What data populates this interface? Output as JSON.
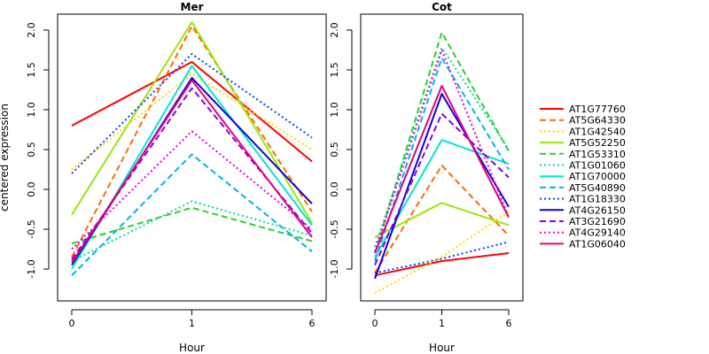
{
  "chart_data": {
    "type": "line",
    "ylabel": "centered expression",
    "legend_position": "right",
    "grid": false,
    "series_styles": [
      {
        "name": "AT1G77760",
        "color": "#ff0000",
        "dash": "solid"
      },
      {
        "name": "AT5G64330",
        "color": "#ff6a00",
        "dash": "dashed"
      },
      {
        "name": "AT1G42540",
        "color": "#ffd700",
        "dash": "dotted"
      },
      {
        "name": "AT5G52250",
        "color": "#9be60f",
        "dash": "solid"
      },
      {
        "name": "AT1G53310",
        "color": "#2ccf2c",
        "dash": "dashed"
      },
      {
        "name": "AT1G01060",
        "color": "#00e090",
        "dash": "dotted"
      },
      {
        "name": "AT1G70000",
        "color": "#00e6d0",
        "dash": "solid"
      },
      {
        "name": "AT5G40890",
        "color": "#00b4e6",
        "dash": "dashed"
      },
      {
        "name": "AT1G18330",
        "color": "#0044ff",
        "dash": "dotted"
      },
      {
        "name": "AT4G26150",
        "color": "#1400d2",
        "dash": "solid"
      },
      {
        "name": "AT3G21690",
        "color": "#8a00e6",
        "dash": "dashed"
      },
      {
        "name": "AT4G29140",
        "color": "#e600e6",
        "dash": "dotted"
      },
      {
        "name": "AT1G06040",
        "color": "#e6007a",
        "dash": "solid"
      }
    ],
    "panels": [
      {
        "title": "Mer",
        "xlabel": "Hour",
        "categories": [
          "0",
          "1",
          "6"
        ],
        "ylim": [
          -1.4,
          2.2
        ],
        "yticks": [
          "-1.0",
          "-0.5",
          "0.0",
          "0.5",
          "1.0",
          "1.5",
          "2.0"
        ],
        "ytick_values": [
          -1.0,
          -0.5,
          0.0,
          0.5,
          1.0,
          1.5,
          2.0
        ],
        "series": [
          {
            "name": "AT1G77760",
            "values": [
              0.8,
              1.6,
              0.35
            ]
          },
          {
            "name": "AT5G64330",
            "values": [
              -0.85,
              2.05,
              -0.28
            ]
          },
          {
            "name": "AT1G42540",
            "values": [
              0.25,
              1.45,
              0.5
            ]
          },
          {
            "name": "AT5G52250",
            "values": [
              -0.32,
              2.1,
              -0.42
            ]
          },
          {
            "name": "AT1G53310",
            "values": [
              -0.68,
              -0.23,
              -0.65
            ]
          },
          {
            "name": "AT1G01060",
            "values": [
              -0.9,
              -0.15,
              -0.58
            ]
          },
          {
            "name": "AT1G70000",
            "values": [
              -1.0,
              1.55,
              -0.45
            ]
          },
          {
            "name": "AT5G40890",
            "values": [
              -1.08,
              0.44,
              -0.78
            ]
          },
          {
            "name": "AT1G18330",
            "values": [
              0.2,
              1.7,
              0.65
            ]
          },
          {
            "name": "AT4G26150",
            "values": [
              -0.95,
              1.4,
              -0.18
            ]
          },
          {
            "name": "AT3G21690",
            "values": [
              -0.88,
              1.27,
              -0.55
            ]
          },
          {
            "name": "AT4G29140",
            "values": [
              -0.75,
              0.73,
              -0.5
            ]
          },
          {
            "name": "AT1G06040",
            "values": [
              -0.92,
              1.37,
              -0.6
            ]
          }
        ]
      },
      {
        "title": "Cot",
        "xlabel": "Hour",
        "categories": [
          "0",
          "1",
          "6"
        ],
        "ylim": [
          -1.4,
          2.2
        ],
        "yticks": [
          "-1.0",
          "-0.5",
          "0.0",
          "0.5",
          "1.0",
          "1.5",
          "2.0"
        ],
        "ytick_values": [
          -1.0,
          -0.5,
          0.0,
          0.5,
          1.0,
          1.5,
          2.0
        ],
        "series": [
          {
            "name": "AT1G77760",
            "values": [
              -1.08,
              -0.9,
              -0.8
            ]
          },
          {
            "name": "AT5G64330",
            "values": [
              -1.05,
              0.3,
              -0.58
            ]
          },
          {
            "name": "AT1G42540",
            "values": [
              -1.3,
              -0.85,
              -0.28
            ]
          },
          {
            "name": "AT5G52250",
            "values": [
              -0.6,
              -0.17,
              -0.45
            ]
          },
          {
            "name": "AT1G53310",
            "values": [
              -0.8,
              1.97,
              0.48
            ]
          },
          {
            "name": "AT1G01060",
            "values": [
              -0.72,
              1.78,
              0.5
            ]
          },
          {
            "name": "AT1G70000",
            "values": [
              -0.85,
              0.62,
              0.32
            ]
          },
          {
            "name": "AT5G40890",
            "values": [
              -0.9,
              1.65,
              0.25
            ]
          },
          {
            "name": "AT1G18330",
            "values": [
              -1.05,
              -0.87,
              -0.66
            ]
          },
          {
            "name": "AT4G26150",
            "values": [
              -1.12,
              1.2,
              -0.22
            ]
          },
          {
            "name": "AT3G21690",
            "values": [
              -0.95,
              0.95,
              0.15
            ]
          },
          {
            "name": "AT4G29140",
            "values": [
              -0.78,
              1.75,
              -0.35
            ]
          },
          {
            "name": "AT1G06040",
            "values": [
              -0.8,
              1.3,
              -0.35
            ]
          }
        ]
      }
    ]
  }
}
